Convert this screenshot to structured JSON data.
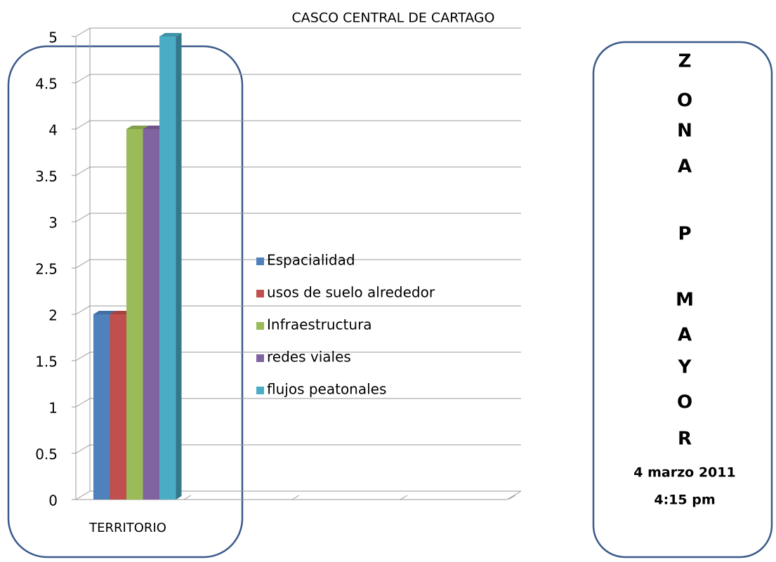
{
  "chart_data": {
    "type": "bar",
    "title": "CASCO CENTRAL DE CARTAGO",
    "categories": [
      "TERRITORIO"
    ],
    "series": [
      {
        "name": "Espacialidad",
        "color": "#4f81bd",
        "values": [
          2
        ]
      },
      {
        "name": "usos de suelo alrededor",
        "color": "#c0504d",
        "values": [
          2
        ]
      },
      {
        "name": "Infraestructura",
        "color": "#9bbb59",
        "values": [
          4
        ]
      },
      {
        "name": "redes viales",
        "color": "#8064a2",
        "values": [
          4
        ]
      },
      {
        "name": "flujos peatonales",
        "color": "#4bacc6",
        "values": [
          5
        ]
      }
    ],
    "ylim": [
      0,
      5
    ],
    "yticks": [
      0,
      0.5,
      1,
      1.5,
      2,
      2.5,
      3,
      3.5,
      4,
      4.5,
      5
    ],
    "grid": true,
    "legend": "center"
  },
  "side_panel": {
    "letters": [
      "Z",
      "O",
      "N",
      "A",
      "P",
      "M",
      "A",
      "Y",
      "O",
      "R"
    ],
    "date": "4 marzo 2011",
    "time": "4:15 pm"
  }
}
